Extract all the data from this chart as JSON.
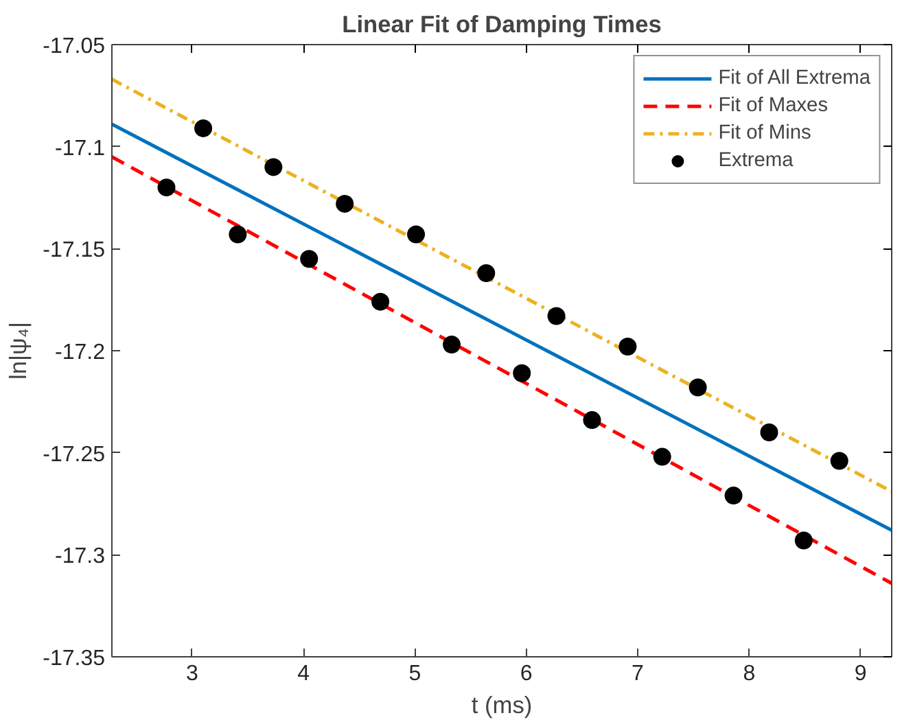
{
  "chart_data": {
    "type": "line",
    "title": "Linear Fit of Damping Times",
    "xlabel": "t (ms)",
    "ylabel": "ln|ψ₄|",
    "xlim": [
      2.28,
      9.28
    ],
    "ylim": [
      -17.35,
      -17.05
    ],
    "xticks": [
      3,
      4,
      5,
      6,
      7,
      8,
      9
    ],
    "yticks": [
      {
        "value": -17.35,
        "label": "-17.35"
      },
      {
        "value": -17.3,
        "label": "-17.3"
      },
      {
        "value": -17.25,
        "label": "-17.25"
      },
      {
        "value": -17.2,
        "label": "-17.2"
      },
      {
        "value": -17.15,
        "label": "-17.15"
      },
      {
        "value": -17.1,
        "label": "-17.1"
      },
      {
        "value": -17.05,
        "label": "-17.05"
      }
    ],
    "grid": false,
    "legend": "top right",
    "series": [
      {
        "name": "Fit of All Extrema",
        "line_style": "solid",
        "color": "#0072bd",
        "x": [
          2.28,
          9.28
        ],
        "values": [
          -17.089,
          -17.288
        ]
      },
      {
        "name": "Fit of Maxes",
        "line_style": "dashed",
        "color": "#ff0000",
        "x": [
          2.28,
          9.28
        ],
        "values": [
          -17.105,
          -17.314
        ]
      },
      {
        "name": "Fit of Mins",
        "line_style": "dashdot",
        "color": "#edb120",
        "x": [
          2.28,
          9.28
        ],
        "values": [
          -17.067,
          -17.269
        ]
      },
      {
        "name": "Extrema",
        "type": "scatter",
        "marker": "circle",
        "color": "#000000",
        "x": [
          2.77,
          3.1,
          3.41,
          3.73,
          4.05,
          4.37,
          4.69,
          5.01,
          5.33,
          5.64,
          5.96,
          6.27,
          6.59,
          6.91,
          7.22,
          7.54,
          7.86,
          8.18,
          8.49,
          8.81
        ],
        "values": [
          -17.12,
          -17.091,
          -17.143,
          -17.11,
          -17.155,
          -17.128,
          -17.176,
          -17.143,
          -17.197,
          -17.162,
          -17.211,
          -17.183,
          -17.234,
          -17.198,
          -17.252,
          -17.218,
          -17.271,
          -17.24,
          -17.293,
          -17.254
        ]
      }
    ]
  }
}
